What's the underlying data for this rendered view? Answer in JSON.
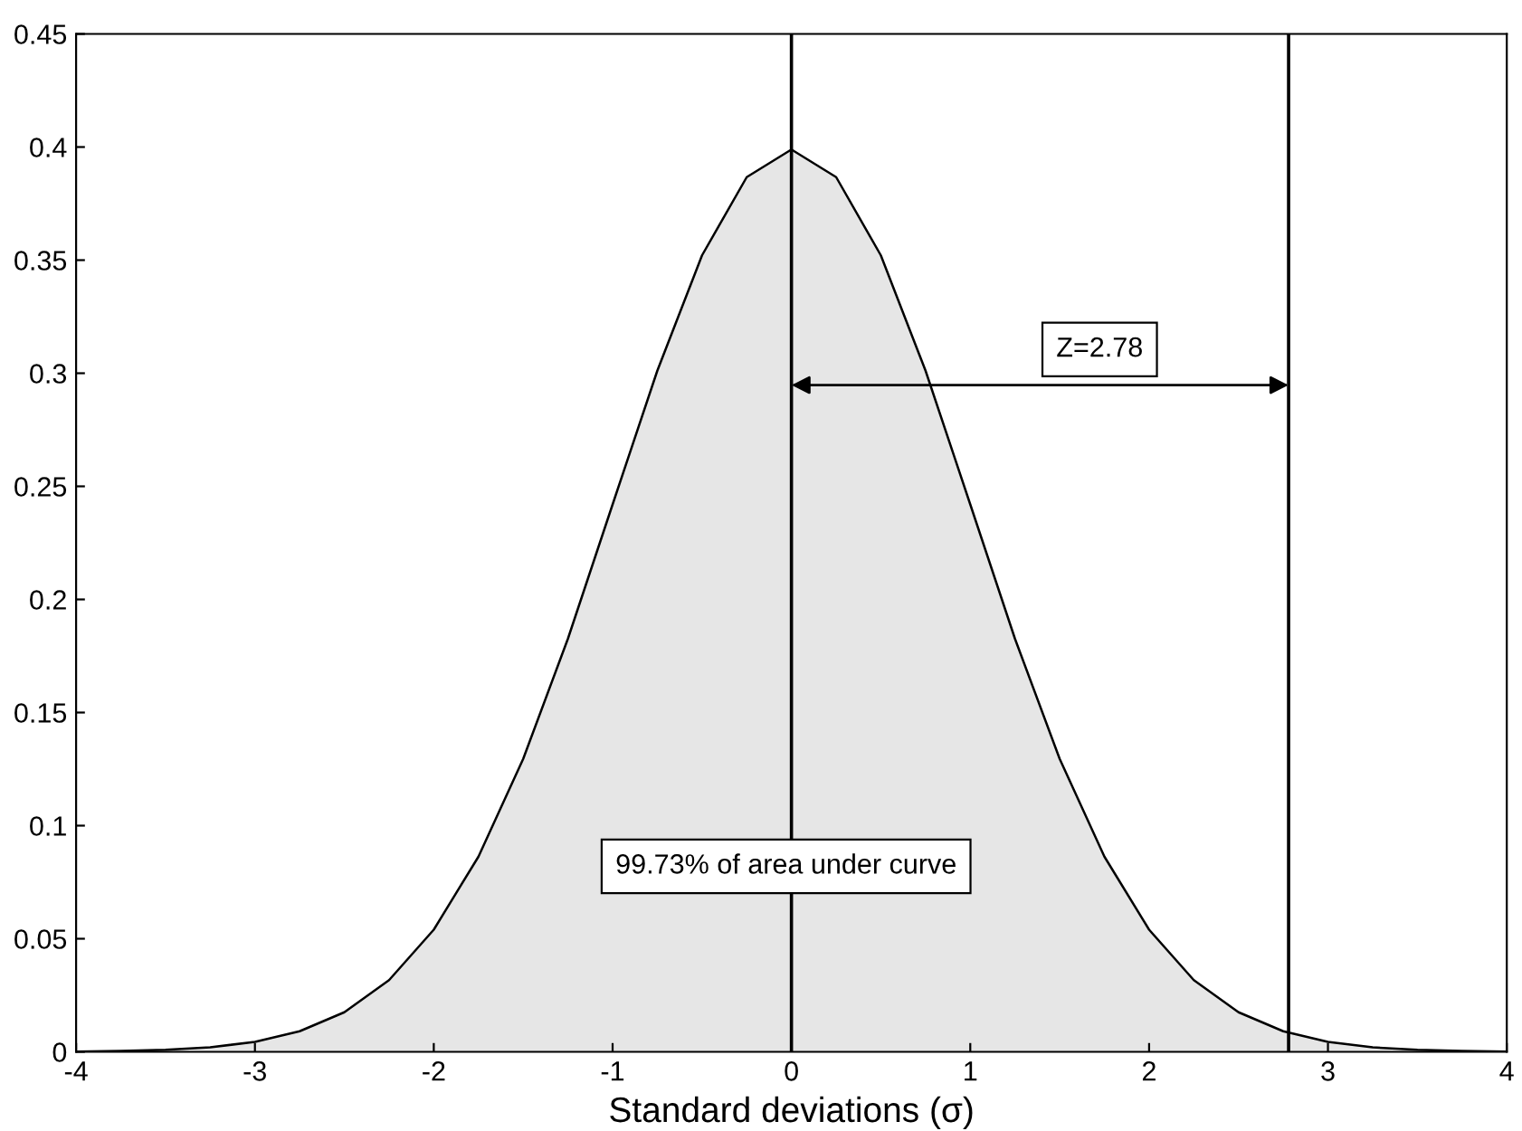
{
  "chart_data": {
    "type": "area",
    "xlabel": "Standard deviations (σ)",
    "x": [
      -4,
      -3.75,
      -3.5,
      -3.25,
      -3,
      -2.75,
      -2.5,
      -2.25,
      -2,
      -1.75,
      -1.5,
      -1.25,
      -1,
      -0.75,
      -0.5,
      -0.25,
      0,
      0.25,
      0.5,
      0.75,
      1,
      1.25,
      1.5,
      1.75,
      2,
      2.25,
      2.5,
      2.75,
      3,
      3.25,
      3.5,
      3.75,
      4
    ],
    "series": [
      {
        "color": "#e6e6e6",
        "values": [
          0.0001,
          0.0004,
          0.0009,
          0.002,
          0.0044,
          0.0091,
          0.0175,
          0.0317,
          0.054,
          0.0863,
          0.1295,
          0.1826,
          0.242,
          0.3011,
          0.3521,
          0.3867,
          0.3989,
          0.3867,
          0.3521,
          0.3011,
          0.242,
          0.1826,
          0.1295,
          0.0863,
          0.054,
          0.0317,
          0.0175,
          0.0091,
          0.0044,
          0.002,
          0.0009,
          0.0004,
          0.0001
        ]
      }
    ],
    "xlim": [
      -4,
      4
    ],
    "xticks": [
      -4,
      -3,
      -2,
      -1,
      0,
      1,
      2,
      3,
      4
    ],
    "ylim": [
      0,
      0.45
    ],
    "yticks": [
      0,
      0.05,
      0.1,
      0.15,
      0.2,
      0.25,
      0.3,
      0.35,
      0.4,
      0.45
    ],
    "ref_lines": [
      {
        "axis": "x",
        "value": 0,
        "color": "#000000"
      },
      {
        "axis": "x",
        "value": 2.78,
        "color": "#000000"
      }
    ],
    "annotations": [
      "Z=2.78",
      {
        "text": "99.73% of area under curve",
        "x": -0.03,
        "y": 0.082
      }
    ],
    "grid": false,
    "legend": false
  }
}
